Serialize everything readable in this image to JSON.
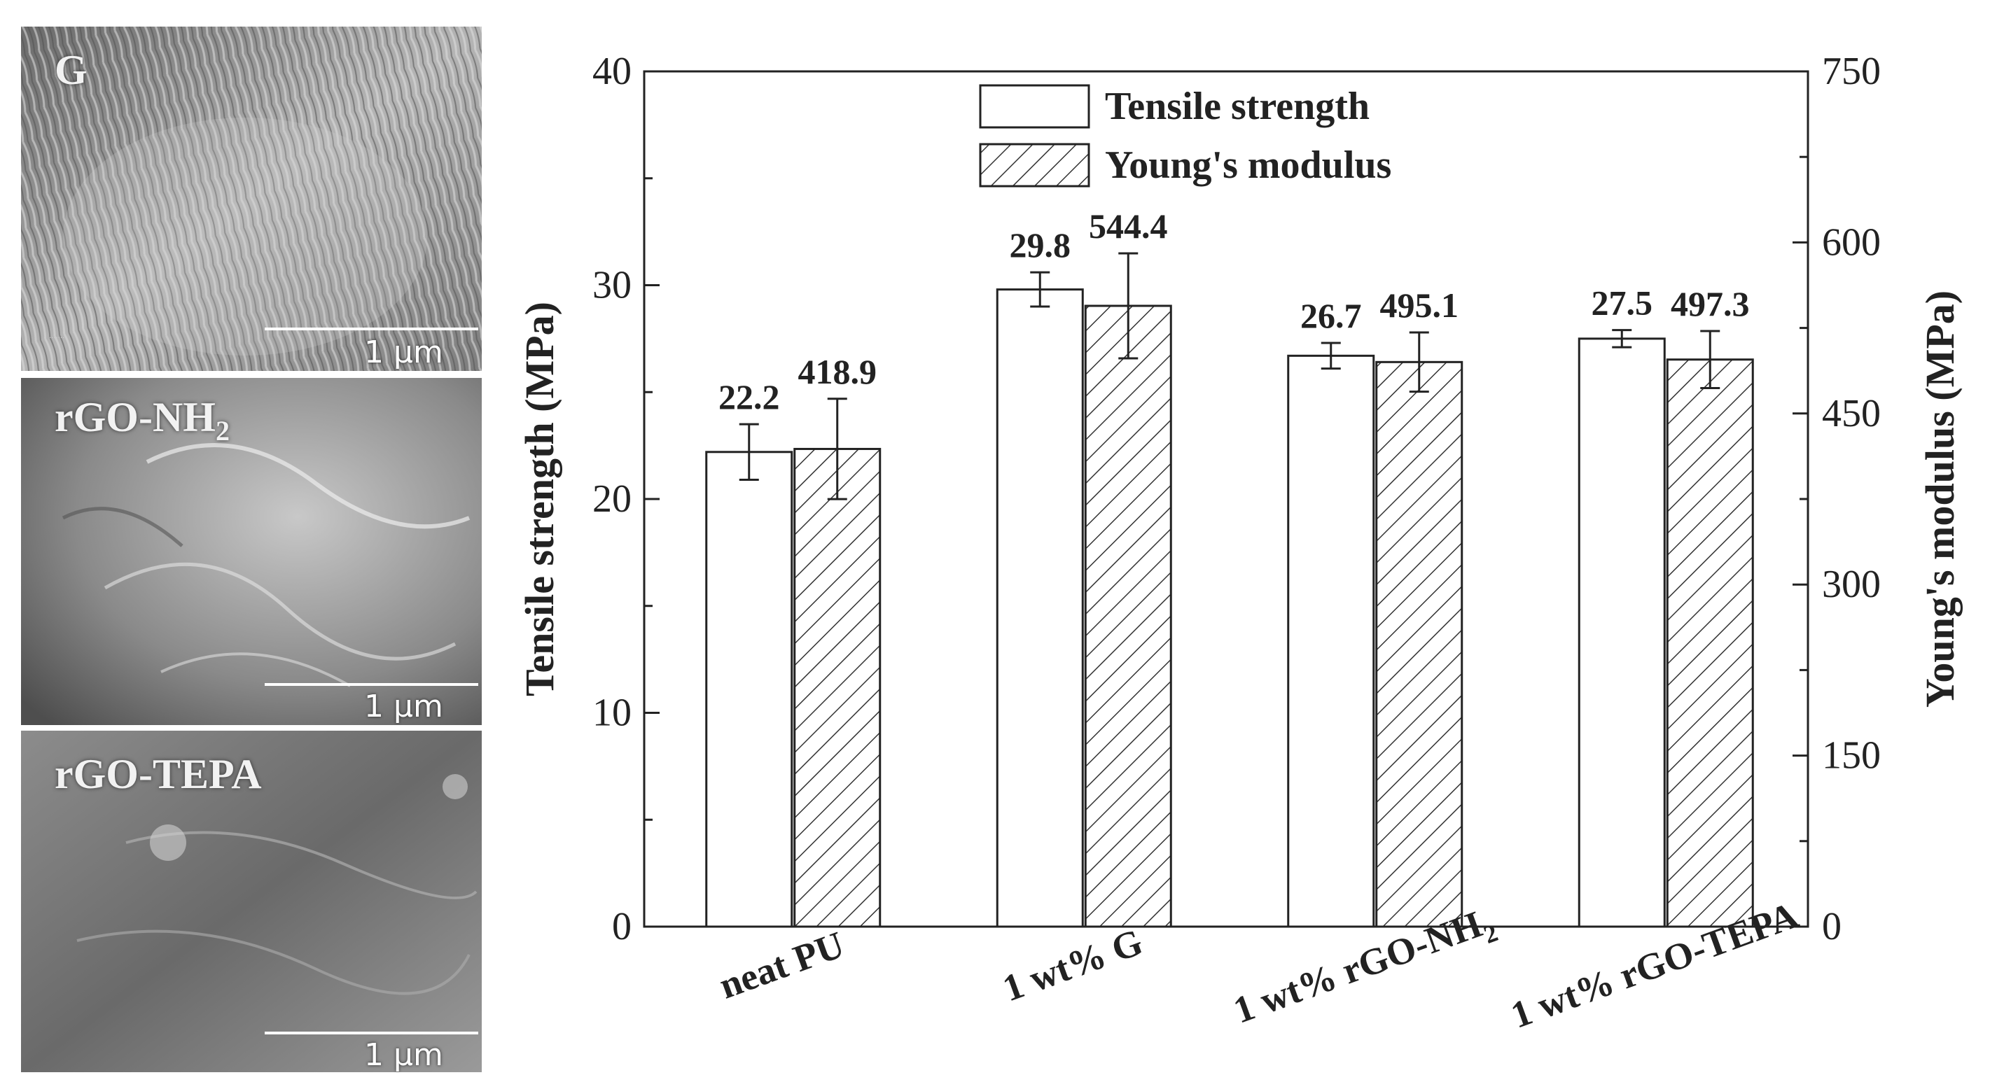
{
  "panels": [
    {
      "label": "G",
      "scale": "1 μm"
    },
    {
      "label": "rGO-NH",
      "label_sub": "2",
      "scale": "1 μm"
    },
    {
      "label": "rGO-TEPA",
      "scale": "1 μm"
    }
  ],
  "chart_data": {
    "type": "bar",
    "categories": [
      "neat PU",
      "1 wt% G",
      "1 wt% rGO-NH",
      "1 wt% rGO-TEPA"
    ],
    "category_subscripts": [
      "",
      "",
      "2",
      ""
    ],
    "series": [
      {
        "name": "Tensile strength",
        "axis": "left",
        "pattern": "none",
        "values": [
          22.2,
          29.8,
          26.7,
          27.5
        ],
        "errors": [
          1.3,
          0.8,
          0.6,
          0.4
        ],
        "labels": [
          "22.2",
          "29.8",
          "26.7",
          "27.5"
        ]
      },
      {
        "name": "Young's modulus",
        "axis": "right",
        "pattern": "hatched",
        "values": [
          418.9,
          544.4,
          495.1,
          497.3
        ],
        "errors": [
          44,
          46,
          26,
          25
        ],
        "labels": [
          "418.9",
          "544.4",
          "495.1",
          "497.3"
        ]
      }
    ],
    "ylabel": "Tensile strength (MPa)",
    "ylabel_right": "Young's modulus (MPa)",
    "ylim": [
      0,
      40
    ],
    "ylim_right": [
      0,
      750
    ],
    "yticks": [
      0,
      10,
      20,
      30,
      40
    ],
    "yticks_right": [
      0,
      150,
      300,
      450,
      600,
      750
    ],
    "legend_position": "top-center",
    "grid": false
  }
}
